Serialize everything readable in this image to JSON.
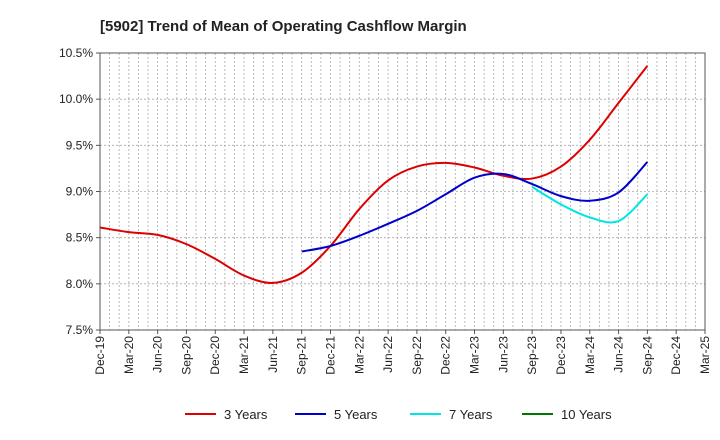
{
  "chart_data": {
    "type": "line",
    "title": "[5902]  Trend of Mean of Operating Cashflow Margin",
    "xlabel": "",
    "ylabel": "",
    "grid": true,
    "legend_position": "bottom",
    "x_ticks": [
      "Dec-19",
      "Mar-20",
      "Jun-20",
      "Sep-20",
      "Dec-20",
      "Mar-21",
      "Jun-21",
      "Sep-21",
      "Dec-21",
      "Mar-22",
      "Jun-22",
      "Sep-22",
      "Dec-22",
      "Mar-23",
      "Jun-23",
      "Sep-23",
      "Dec-23",
      "Mar-24",
      "Jun-24",
      "Sep-24",
      "Dec-24",
      "Mar-25"
    ],
    "y_ticks": [
      "7.5%",
      "8.0%",
      "8.5%",
      "9.0%",
      "9.5%",
      "10.0%",
      "10.5%"
    ],
    "ylim": [
      7.5,
      10.5
    ],
    "series": [
      {
        "name": "3 Years",
        "color": "#dd0000",
        "points": [
          [
            "Dec-19",
            8.61
          ],
          [
            "Mar-20",
            8.56
          ],
          [
            "Jun-20",
            8.53
          ],
          [
            "Sep-20",
            8.43
          ],
          [
            "Dec-20",
            8.27
          ],
          [
            "Mar-21",
            8.09
          ],
          [
            "Jun-21",
            8.01
          ],
          [
            "Sep-21",
            8.12
          ],
          [
            "Dec-21",
            8.41
          ],
          [
            "Mar-22",
            8.81
          ],
          [
            "Jun-22",
            9.12
          ],
          [
            "Sep-22",
            9.27
          ],
          [
            "Dec-22",
            9.31
          ],
          [
            "Mar-23",
            9.26
          ],
          [
            "Jun-23",
            9.17
          ],
          [
            "Sep-23",
            9.14
          ],
          [
            "Dec-23",
            9.27
          ],
          [
            "Mar-24",
            9.56
          ],
          [
            "Jun-24",
            9.96
          ],
          [
            "Sep-24",
            10.36
          ]
        ]
      },
      {
        "name": "5 Years",
        "color": "#0000cc",
        "points": [
          [
            "Sep-21",
            8.35
          ],
          [
            "Dec-21",
            8.41
          ],
          [
            "Mar-22",
            8.52
          ],
          [
            "Jun-22",
            8.65
          ],
          [
            "Sep-22",
            8.79
          ],
          [
            "Dec-22",
            8.97
          ],
          [
            "Mar-23",
            9.15
          ],
          [
            "Jun-23",
            9.19
          ],
          [
            "Sep-23",
            9.08
          ],
          [
            "Dec-23",
            8.95
          ],
          [
            "Mar-24",
            8.9
          ],
          [
            "Jun-24",
            8.99
          ],
          [
            "Sep-24",
            9.32
          ]
        ]
      },
      {
        "name": "7 Years",
        "color": "#00e5e5",
        "points": [
          [
            "Sep-23",
            9.05
          ],
          [
            "Dec-23",
            8.86
          ],
          [
            "Mar-24",
            8.72
          ],
          [
            "Jun-24",
            8.68
          ],
          [
            "Sep-24",
            8.97
          ]
        ]
      },
      {
        "name": "10 Years",
        "color": "#007700",
        "points": []
      }
    ]
  }
}
